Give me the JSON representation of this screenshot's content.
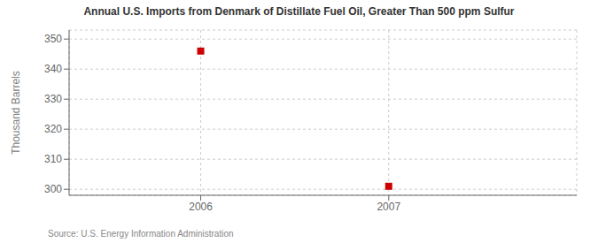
{
  "chart_data": {
    "type": "scatter",
    "title": "Annual U.S. Imports from Denmark of Distillate Fuel Oil, Greater Than 500 ppm Sulfur",
    "ylabel": "Thousand Barrels",
    "source": "Source: U.S. Energy Information Administration",
    "x": [
      2006,
      2007
    ],
    "values": [
      346,
      301
    ],
    "color": "#cc0000",
    "marker": "square",
    "xlim": [
      2005.3,
      2008.0
    ],
    "ylim": [
      298,
      353
    ],
    "xticks": [
      2006,
      2007
    ],
    "yticks": [
      300,
      310,
      320,
      330,
      340,
      350
    ],
    "grid": true
  }
}
